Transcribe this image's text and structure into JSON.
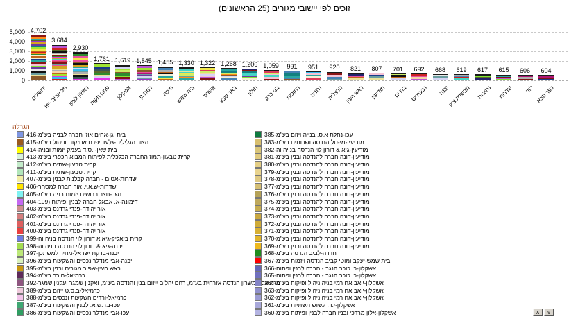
{
  "window": {
    "spinner_up": "∧",
    "spinner_down": "∨"
  },
  "chart_data": {
    "type": "bar",
    "stacked": true,
    "title": "זוכים לפי יישובי מגורים (25 הראשונים)",
    "categories": [
      "ירושלים",
      "תל אביב -יפו",
      "ראשון לציון",
      "פתח תקוה",
      "אשקלון",
      "רמת גן",
      "חיפה",
      "בית שמש",
      "אשדוד",
      "באר שבע",
      "חולון",
      "בני ברק",
      "רחובות",
      "נתניה",
      "הרצליה",
      "ראש העין",
      "מודיעין",
      "בת ים",
      "גבעתיים",
      "יבנה",
      "מבשרת ציון",
      "נתיבות",
      "שדרות",
      "לוד",
      "כפר סבא"
    ],
    "values": [
      4702,
      3684,
      2930,
      1761,
      1619,
      1545,
      1455,
      1330,
      1322,
      1268,
      1206,
      1059,
      991,
      951,
      920,
      821,
      807,
      701,
      692,
      668,
      619,
      617,
      615,
      606,
      604
    ],
    "ylim": [
      0,
      5000
    ],
    "ytick_values": [
      5000,
      4000,
      3000,
      2000,
      1000,
      0
    ],
    "ytick_labels": [
      "5,000",
      "4,000",
      "3,000",
      "2,000",
      "1,000",
      "0"
    ],
    "grid": "horizontal-dashed",
    "legend_position": "bottom-two-columns",
    "legend_title": "הגרלה",
    "legend_left": [
      {
        "label": "בית וגן-אחים אוזן חברה לבניה בע\"מ-416",
        "color": "#7e96e2"
      },
      {
        "label": "הצור הגלילית-גלעד יפרח אחזקות וניהול בע\"מ-415",
        "color": "#9c5a1e"
      },
      {
        "label": "בית שאן-י.ס.ד בעמק יזמות ובניה-414",
        "color": "#ffff00"
      },
      {
        "label": "קרית טבעון-תמוז החברה הכלכלית לפיתוח המבוא הכפרי בע\"מ-413",
        "color": "#d8f2dc"
      },
      {
        "label": "קרית טבעון-שתית בע\"מ-412",
        "color": "#c4ecca"
      },
      {
        "label": "קרית טבעון-שתית בע\"מ-411",
        "color": "#b2e6ba"
      },
      {
        "label": "שדרות-אטום - חברה קבלנית לבנין בע\"מ-407",
        "color": "#f2eea6"
      },
      {
        "label": "שדרות-ש.א.י. אור חברה למסחר-406",
        "color": "#ffe400"
      },
      {
        "label": "נשר-חצר ברושים יזמות בניה בע\"מ-405",
        "color": "#7ef2f2"
      },
      {
        "label": "דימונה-א. אבאל חברה לבנין ופיתוח (404-199",
        "color": "#c568f2"
      },
      {
        "label": "אור יהודה-פנדי גרדנס בע\"מ-403",
        "color": "#cf9090"
      },
      {
        "label": "אור יהודה-פנדי גרדנס בע\"מ-402",
        "color": "#d47e7e"
      },
      {
        "label": "אור יהודה-פנדי גרדנס בע\"מ-401",
        "color": "#de6060"
      },
      {
        "label": "אור יהודה-פנדי גרדנס בע\"מ-400",
        "color": "#ea4040"
      },
      {
        "label": "קרית ביאליק-גיא א דורון לוי הנדסה בניה וה-399",
        "color": "#6e7ee6"
      },
      {
        "label": "יבנה-גיא & דורון לוי הנדסה בניה וה-398",
        "color": "#a4dc50"
      },
      {
        "label": "יבנה-ברקת ישראל-מחיר למשתכן-397",
        "color": "#bce878"
      },
      {
        "label": "יבנה-אבי מנדלר נכסים והשקעות בע\"מ-396",
        "color": "#daf2bc"
      },
      {
        "label": "ראש העין-שפיר מגורים ובנין בע\"מ-395",
        "color": "#c9970f"
      },
      {
        "label": "כרמיאל-חורב בע\"מ-394",
        "color": "#5e2a5a"
      },
      {
        "label": "כרמיאל-אמשרון הנדסה אזרחית בע\"מ, רחם יהלום ייזום בנין והנדסה בע\"מ, ואקנין שמגר ועקנין שמגר-392",
        "color": "#8e5680"
      },
      {
        "label": "כרמיאל-ב.ס.ט ייזום בע\"מ-389",
        "color": "#f0cadd"
      },
      {
        "label": "כרמיאל-ורדים השקעות ונכסים בע\"מ-388",
        "color": "#f2c4ea"
      },
      {
        "label": "עכו-נ.ר.ש.א. לבנין והשקעות בע\"מ-387",
        "color": "#3fa873"
      },
      {
        "label": "עכו-אבי מנדלר נכסים והשקעות בע\"מ-386",
        "color": "#2f9e62"
      }
    ],
    "legend_right": [
      {
        "label": "עכו-נחלת א.ס. בנייה ויזום בע\"מ-385",
        "color": "#0f7a40"
      },
      {
        "label": "מודיעין-מי-טל הנדסה ושרותים בע\"מ-383",
        "color": "#d8bf6e"
      },
      {
        "label": "מודיעין-גיא & דורון לוי הנדסה בנייה וה-382",
        "color": "#d9c578"
      },
      {
        "label": "מודיעין-דונה חברה להנדסה ובנין בע\"מ-381",
        "color": "#e0ca7e"
      },
      {
        "label": "מודיעין-דונה חברה להנדסה ובנין בע\"מ-380",
        "color": "#e5cf86"
      },
      {
        "label": "מודיעין-דונה חברה להנדסה ובנין בע\"מ-379",
        "color": "#e9d48e"
      },
      {
        "label": "מודיעין-דונה חברה להנדסה ובנין בע\"מ-378",
        "color": "#dfc982"
      },
      {
        "label": "מודיעין-דונה חברה להנדסה ובנין בע\"מ-377",
        "color": "#d5bf74"
      },
      {
        "label": "מודיעין-דונה חברה להנדסה ובנין בע\"מ-376",
        "color": "#b5a258"
      },
      {
        "label": "מודיעין-דונה חברה להנדסה ובנין בע\"מ-375",
        "color": "#bfa95c"
      },
      {
        "label": "מודיעין-דונה חברה להנדסה ובנין בע\"מ-374",
        "color": "#c6ac50"
      },
      {
        "label": "מודיעין-דונה חברה להנדסה ובנין בע\"מ-373",
        "color": "#c9a842"
      },
      {
        "label": "מודיעין-דונה חברה להנדסה ובנין בע\"מ-372",
        "color": "#cfab38"
      },
      {
        "label": "מודיעין-דונה חברה להנדסה ובנין בע\"מ-371",
        "color": "#d7b034"
      },
      {
        "label": "מודיעין-דונה חברה להנדסה ובנין בע\"מ-370",
        "color": "#e0b52c"
      },
      {
        "label": "מודיעין-דונה חברה להנדסה ובנין בע\"מ-369",
        "color": "#eeb91e"
      },
      {
        "label": "חדרה-לביב הנדסה בע\"מ-368",
        "color": "#1f8c1f"
      },
      {
        "label": "בית שמש-יעקב ומוטי קביב הנדסה ויזמות בע\"מ-367",
        "color": "#ff0000"
      },
      {
        "label": "אשקלון-כ. כוכב הנגב - חברה לבנין ופתוח-366",
        "color": "#6467b8"
      },
      {
        "label": "אשקלון-כ. כוכב הנגב - חברה לבנין ופתוח-365",
        "color": "#7070be"
      },
      {
        "label": "אשקלון-יואב אח רמי בניה ניהול ופיקוח בע\"מ-364",
        "color": "#8484c6"
      },
      {
        "label": "אשקלון-יואב אח רמי בניה ניהול ופיקוח בע\"מ-363",
        "color": "#9090cc"
      },
      {
        "label": "אשקלון-יואב אח רמי בניה ניהול ופיקוח בע\"מ-362",
        "color": "#9c9cd2"
      },
      {
        "label": "אשקלון-י.ד. עשוש תשתיות בע\"מ-361",
        "color": "#a8a8da"
      },
      {
        "label": "אשקלון-אלון מרדכי ובניו חברה לבנין ופיתוח בע\"מ-360",
        "color": "#b4b4e2"
      }
    ],
    "stripe_palette": [
      "#111111",
      "#f2e84a",
      "#e84fa0",
      "#2aa8a0",
      "#6a3aa0",
      "#cc2222",
      "#f5f0d5",
      "#2e8b2e",
      "#ff8c1a",
      "#33bbee",
      "#8a5a2a",
      "#b0b0b0",
      "#e533e5",
      "#1a3a8a",
      "#ccee66",
      "#f5c2d5",
      "#5a6b2a",
      "#45d5c5",
      "#b01575",
      "#22226a",
      "#d5a520",
      "#3a5555",
      "#d5d5f5",
      "#8a1515",
      "#7fe532",
      "#c2661a",
      "#9932cc",
      "#ece29a",
      "#128080",
      "#dc3a5a",
      "#4682b4",
      "#a0e532",
      "#801515",
      "#ba55d3",
      "#6a9ea0",
      "#f5d5a8",
      "#111111",
      "#e8e8e8"
    ]
  }
}
